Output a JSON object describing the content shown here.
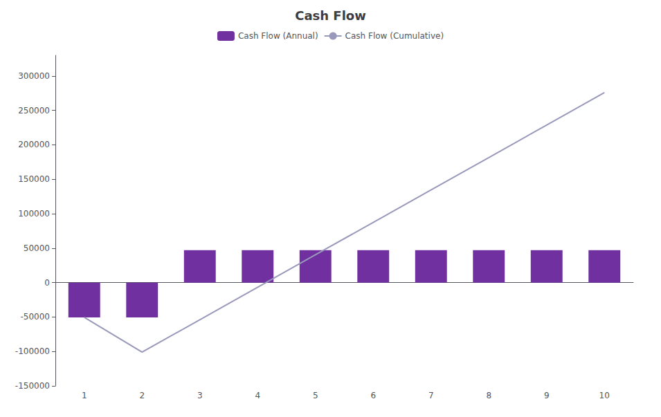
{
  "chart_data": {
    "type": "bar",
    "title": "Cash Flow",
    "categories": [
      "1",
      "2",
      "3",
      "4",
      "5",
      "6",
      "7",
      "8",
      "9",
      "10"
    ],
    "series": [
      {
        "name": "Cash Flow (Annual)",
        "type": "bar",
        "color": "#7030A0",
        "values": [
          -50500,
          -50500,
          47100,
          47100,
          47100,
          47100,
          47100,
          47100,
          47100,
          47100
        ]
      },
      {
        "name": "Cash Flow (Cumulative)",
        "type": "line",
        "color": "#9999BB",
        "values": [
          -50500,
          -101000,
          -53900,
          -6800,
          40300,
          87400,
          134500,
          181600,
          228700,
          275800
        ]
      }
    ],
    "ylim": [
      -150000,
      330000
    ],
    "yticks": [
      -150000,
      -100000,
      -50000,
      0,
      50000,
      100000,
      150000,
      200000,
      250000,
      300000
    ],
    "grid": false,
    "legend": "top"
  }
}
